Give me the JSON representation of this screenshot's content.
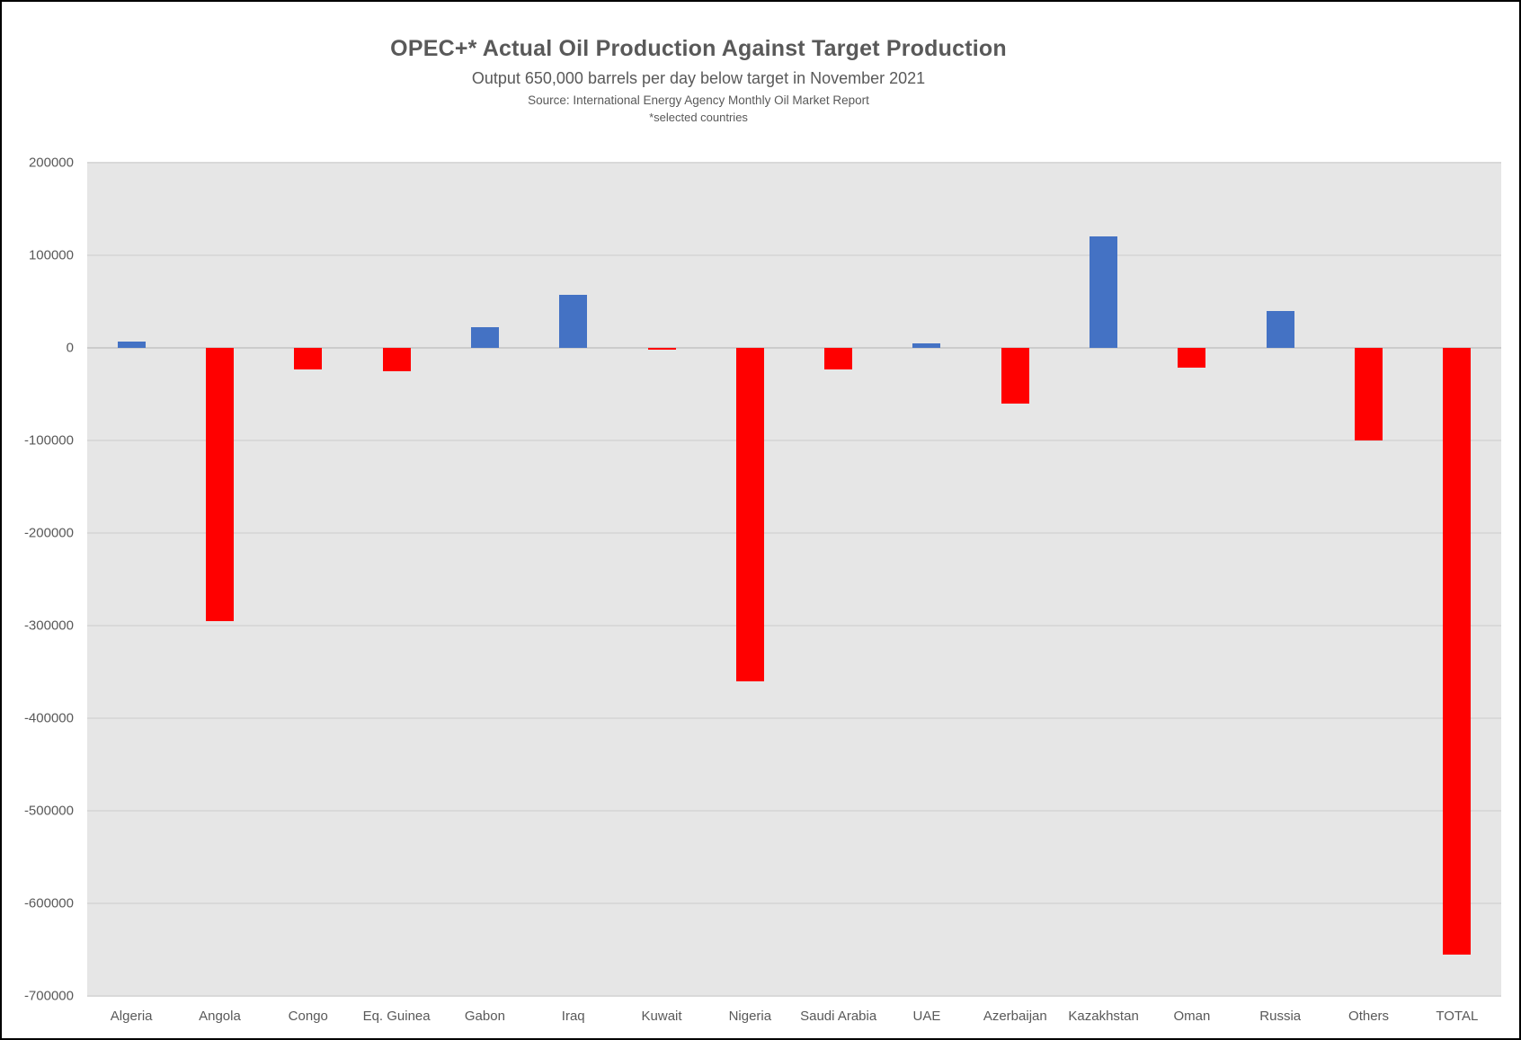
{
  "chart_data": {
    "type": "bar",
    "title": "OPEC+* Actual Oil Production Against Target Production",
    "subtitle": "Output 650,000 barrels per day  below target in November 2021",
    "source": "Source: International Energy Agency Monthly Oil Market Report",
    "footnote": "*selected countries",
    "categories": [
      "Algeria",
      "Angola",
      "Congo",
      "Eq. Guinea",
      "Gabon",
      "Iraq",
      "Kuwait",
      "Nigeria",
      "Saudi Arabia",
      "UAE",
      "Azerbaijan",
      "Kazakhstan",
      "Oman",
      "Russia",
      "Others",
      "TOTAL"
    ],
    "values": [
      7000,
      -295000,
      -23000,
      -25000,
      22000,
      57000,
      -2000,
      -360000,
      -23000,
      5000,
      -60000,
      120000,
      -21000,
      40000,
      -100000,
      -655000
    ],
    "xlabel": "",
    "ylabel": "",
    "ylim": [
      -700000,
      200000
    ],
    "ytick_interval": 100000,
    "ytick_labels": [
      "200000",
      "100000",
      "0",
      "-100000",
      "-200000",
      "-300000",
      "-400000",
      "-500000",
      "-600000",
      "-700000"
    ],
    "grid": true,
    "legend": false,
    "positive_color": "#4472C4",
    "negative_color": "#FF0000",
    "plot_background": "#E6E6E6",
    "gridline_color": "#D9D9D9",
    "text_color": "#595959"
  }
}
